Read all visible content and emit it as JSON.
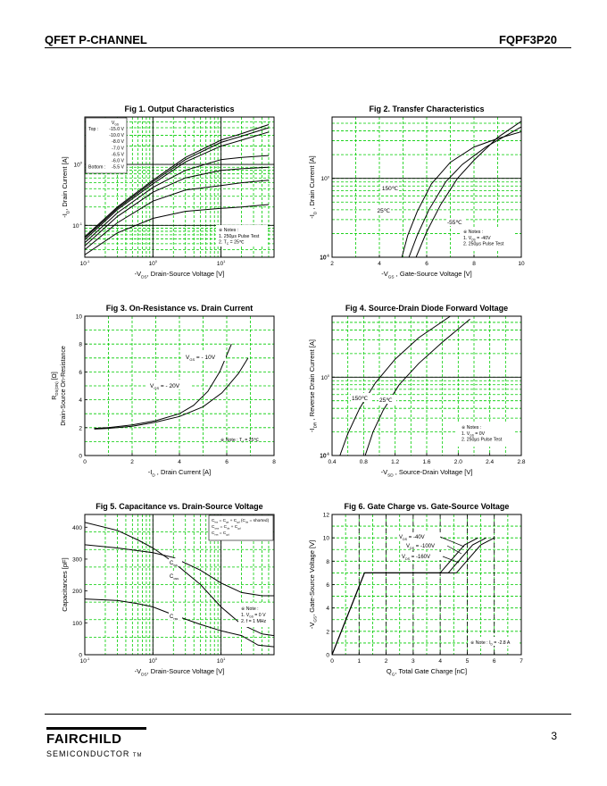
{
  "header": {
    "left": "QFET P-CHANNEL",
    "right": "FQPF3P20"
  },
  "footer": {
    "company": "FAIRCHILD",
    "company_sub": "SEMICONDUCTOR",
    "tm": "TM",
    "page": "3"
  },
  "colors": {
    "grid": "#00cc00",
    "line": "#000000"
  },
  "chart_data": [
    {
      "id": "fig1",
      "type": "line",
      "scale": "log-log",
      "title": "Fig 1.  Output Characteristics",
      "xlabel": "-V_DS, Drain-Source Voltage [V]",
      "ylabel": "-I_D, Drain Current [A]",
      "xticks": [
        "10^-1",
        "10^0",
        "10^1"
      ],
      "yticks": [
        "10^0",
        "10^-1"
      ],
      "xlim": [
        0.1,
        60
      ],
      "ylim": [
        0.03,
        6
      ],
      "legend_header": "V_GS",
      "legend": [
        {
          "label": "Top :",
          "value": "-15.0 V"
        },
        {
          "label": "",
          "value": "-10.0 V"
        },
        {
          "label": "",
          "value": "-8.0 V"
        },
        {
          "label": "",
          "value": "-7.0 V"
        },
        {
          "label": "",
          "value": "-6.5 V"
        },
        {
          "label": "",
          "value": "-6.0 V"
        },
        {
          "label": "Bottom :",
          "value": "-5.5 V"
        }
      ],
      "notes": [
        "※ Notes :",
        "1. 250μs Pulse Test",
        "2. T_C = 25℃"
      ],
      "series": [
        {
          "name": "-15.0 V",
          "x": [
            0.1,
            0.3,
            1,
            3,
            10,
            20,
            50
          ],
          "y": [
            0.065,
            0.2,
            0.55,
            1.3,
            2.5,
            3.2,
            4.5
          ]
        },
        {
          "name": "-10.0 V",
          "x": [
            0.1,
            0.3,
            1,
            3,
            10,
            20,
            50
          ],
          "y": [
            0.062,
            0.19,
            0.52,
            1.2,
            2.3,
            2.9,
            4.0
          ]
        },
        {
          "name": "-8.0 V",
          "x": [
            0.1,
            0.3,
            1,
            3,
            10,
            20,
            50
          ],
          "y": [
            0.058,
            0.18,
            0.48,
            1.1,
            2.0,
            2.5,
            3.4
          ]
        },
        {
          "name": "-7.0 V",
          "x": [
            0.1,
            0.3,
            1,
            3,
            10,
            20,
            50
          ],
          "y": [
            0.052,
            0.16,
            0.42,
            0.8,
            1.2,
            1.3,
            1.4
          ]
        },
        {
          "name": "-6.5 V",
          "x": [
            0.1,
            0.3,
            1,
            3,
            10,
            20,
            50
          ],
          "y": [
            0.046,
            0.14,
            0.35,
            0.6,
            0.8,
            0.85,
            0.9
          ]
        },
        {
          "name": "-6.0 V",
          "x": [
            0.1,
            0.3,
            1,
            3,
            10,
            20,
            50
          ],
          "y": [
            0.04,
            0.11,
            0.25,
            0.38,
            0.45,
            0.5,
            0.55
          ]
        },
        {
          "name": "-5.5 V",
          "x": [
            0.1,
            0.3,
            1,
            3,
            10,
            20,
            50
          ],
          "y": [
            0.033,
            0.075,
            0.13,
            0.17,
            0.19,
            0.2,
            0.22
          ]
        }
      ]
    },
    {
      "id": "fig2",
      "type": "line",
      "scale": "semilog-y",
      "title": "Fig 2.  Transfer Characteristics",
      "xlabel": "-V_GS , Gate-Source Voltage  [V]",
      "ylabel": "-I_D , Drain Current  [A]",
      "xticks": [
        "2",
        "4",
        "6",
        "8",
        "10"
      ],
      "yticks": [
        "10^0",
        "10^-1"
      ],
      "xlim": [
        2,
        10
      ],
      "ylim": [
        0.1,
        6
      ],
      "notes": [
        "※ Notes :",
        "1. V_DS = -40V",
        "2. 250μs Pulse Test"
      ],
      "series": [
        {
          "name": "150℃",
          "x": [
            4.95,
            5.2,
            5.6,
            6.2,
            7,
            8,
            9,
            10
          ],
          "y": [
            0.1,
            0.19,
            0.38,
            0.85,
            1.6,
            2.5,
            3.2,
            3.9
          ]
        },
        {
          "name": "25℃",
          "x": [
            5.25,
            5.6,
            6.1,
            6.8,
            7.5,
            8.5,
            10
          ],
          "y": [
            0.1,
            0.19,
            0.4,
            0.9,
            1.5,
            2.5,
            4.5
          ]
        },
        {
          "name": "-55℃",
          "x": [
            5.55,
            6.0,
            6.6,
            7.3,
            8,
            9,
            10
          ],
          "y": [
            0.1,
            0.21,
            0.47,
            1.0,
            1.7,
            3.3,
            5.3
          ]
        }
      ],
      "labels": [
        "150℃",
        "25℃",
        "-55℃"
      ]
    },
    {
      "id": "fig3",
      "type": "line",
      "scale": "linear",
      "title": "Fig 3.  On-Resistance vs. Drain Current",
      "xlabel": "-I_D , Drain Current  [A]",
      "ylabel": "R_DS(ON) [Ω], Drain-Source On-Resistance",
      "xticks": [
        "0",
        "2",
        "4",
        "6",
        "8"
      ],
      "yticks": [
        "0",
        "2",
        "4",
        "6",
        "8",
        "10"
      ],
      "xlim": [
        0,
        8
      ],
      "ylim": [
        0,
        10
      ],
      "notes": [
        "※ Note : T_J = 25℃"
      ],
      "series": [
        {
          "name": "V_GS = - 10V",
          "x": [
            0.4,
            1,
            2,
            3,
            4,
            4.6,
            5.2,
            5.7,
            6.2
          ],
          "y": [
            1.95,
            2.0,
            2.2,
            2.5,
            3.0,
            3.6,
            4.6,
            6.0,
            8.0
          ]
        },
        {
          "name": "V_GS = - 20V",
          "x": [
            0.4,
            1,
            2,
            3,
            4,
            5,
            5.8,
            6.5,
            6.9
          ],
          "y": [
            1.9,
            1.95,
            2.1,
            2.4,
            2.8,
            3.5,
            4.5,
            5.9,
            7.0
          ]
        }
      ],
      "labels": [
        "V_GS = - 10V",
        "V_GS = - 20V"
      ]
    },
    {
      "id": "fig4",
      "type": "line",
      "scale": "semilog-y",
      "title": "Fig 4.  Source-Drain Diode Forward Voltage",
      "xlabel": "-V_SD , Source-Drain Voltage  [V]",
      "ylabel": "-I_DR , Reverse Drain Current  [A]",
      "xticks": [
        "0.4",
        "0.8",
        "1.2",
        "1.6",
        "2.0",
        "2.4",
        "2.8"
      ],
      "yticks": [
        "10^0",
        "10^-1"
      ],
      "xlim": [
        0.4,
        2.8
      ],
      "ylim": [
        0.1,
        6
      ],
      "notes": [
        "※ Notes :",
        "1. V_GS = 0V",
        "2. 250μs Pulse Test"
      ],
      "series": [
        {
          "name": "150℃",
          "x": [
            0.5,
            0.6,
            0.75,
            0.95,
            1.2,
            1.5,
            1.9
          ],
          "y": [
            0.1,
            0.19,
            0.4,
            0.85,
            1.7,
            3.2,
            6.0
          ]
        },
        {
          "name": "25℃",
          "x": [
            0.82,
            0.92,
            1.05,
            1.25,
            1.5,
            1.8,
            2.15
          ],
          "y": [
            0.1,
            0.2,
            0.38,
            0.8,
            1.5,
            2.8,
            5.5
          ]
        }
      ],
      "labels": [
        "150℃",
        "25℃"
      ]
    },
    {
      "id": "fig5",
      "type": "line",
      "scale": "semilog-x",
      "title": "Fig 5.  Capacitance vs. Drain-Source Voltage",
      "xlabel": "-V_DS, Drain-Source Voltage [V]",
      "ylabel": "Capacitances [pF]",
      "xticks": [
        "10^-1",
        "10^0",
        "10^1"
      ],
      "yticks": [
        "0",
        "100",
        "200",
        "300",
        "400"
      ],
      "xlim": [
        0.1,
        60
      ],
      "ylim": [
        0,
        440
      ],
      "formula": [
        "C_iss = C_gs + C_gd (C_ds = shorted)",
        "C_oss = C_ds + C_gd",
        "C_rss = C_gd"
      ],
      "notes": [
        "※ Note :",
        "1. V_GS = 0 V",
        "2. f = 1 MHz"
      ],
      "series": [
        {
          "name": "C_iss",
          "x": [
            0.1,
            0.3,
            1,
            2,
            5,
            10,
            20,
            40,
            60
          ],
          "y": [
            345,
            335,
            320,
            305,
            265,
            225,
            195,
            185,
            185
          ]
        },
        {
          "name": "C_oss",
          "x": [
            0.1,
            0.3,
            0.6,
            1,
            2,
            5,
            10,
            20,
            40,
            60
          ],
          "y": [
            415,
            390,
            360,
            335,
            290,
            220,
            150,
            95,
            65,
            60
          ]
        },
        {
          "name": "C_rss",
          "x": [
            0.1,
            0.3,
            0.6,
            1,
            2,
            5,
            10,
            20,
            35,
            60
          ],
          "y": [
            175,
            170,
            160,
            150,
            125,
            95,
            75,
            60,
            30,
            25
          ]
        }
      ],
      "labels": [
        "C_iss",
        "C_oss",
        "C_rss"
      ]
    },
    {
      "id": "fig6",
      "type": "line",
      "scale": "linear",
      "title": "Fig 6.  Gate Charge vs. Gate-Source Voltage",
      "xlabel": "Q_G, Total Gate Charge [nC]",
      "ylabel": "-V_GS, Gate-Source Voltage [V]",
      "xticks": [
        "0",
        "1",
        "2",
        "3",
        "4",
        "5",
        "6",
        "7"
      ],
      "yticks": [
        "0",
        "2",
        "4",
        "6",
        "8",
        "10",
        "12"
      ],
      "xlim": [
        0,
        7
      ],
      "ylim": [
        0,
        12
      ],
      "notes": [
        "※ Note : I_D = -2.8 A"
      ],
      "series": [
        {
          "name": "V_DS = -40V",
          "x": [
            0,
            1.2,
            1.9,
            4.0,
            4.9,
            5.4
          ],
          "y": [
            0,
            7.0,
            7.0,
            7.0,
            9.4,
            10.0
          ]
        },
        {
          "name": "V_DS = -100V",
          "x": [
            0,
            1.2,
            1.9,
            4.3,
            5.2,
            5.7
          ],
          "y": [
            0,
            7.0,
            7.0,
            7.0,
            9.4,
            10.0
          ]
        },
        {
          "name": "V_DS = -160V",
          "x": [
            0,
            1.2,
            1.9,
            4.6,
            5.5,
            6.0
          ],
          "y": [
            0,
            7.0,
            7.0,
            7.0,
            9.4,
            10.0
          ]
        }
      ],
      "labels": [
        "V_DS = -40V",
        "V_DS = -100V",
        "V_DS = -160V"
      ]
    }
  ]
}
